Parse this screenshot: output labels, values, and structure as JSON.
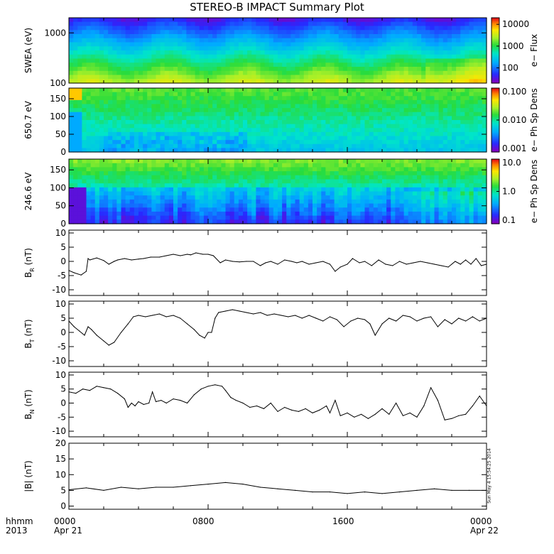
{
  "title": "STEREO-B IMPACT Summary Plot",
  "time_axis": {
    "corner_top": "hhmm",
    "corner_bottom": "2013",
    "ticks": [
      {
        "hhmm": "0000",
        "date": "Apr 21",
        "hour": 0
      },
      {
        "hhmm": "0800",
        "date": "",
        "hour": 8
      },
      {
        "hhmm": "1600",
        "date": "",
        "hour": 16
      },
      {
        "hhmm": "0000",
        "date": "Apr 22",
        "hour": 24
      }
    ]
  },
  "timestamp": "Sun May  4 15:54:25 2014",
  "chart_data": [
    {
      "type": "heatmap",
      "ylabel": "SWEA (eV)",
      "yscale": "log",
      "ylim": [
        100,
        2000
      ],
      "yticks": [
        "1000",
        "100"
      ],
      "colorbar": {
        "label": "e− Flux",
        "scale": "log",
        "ticks": [
          "10000",
          "1000",
          "100"
        ],
        "range": [
          20,
          20000
        ]
      }
    },
    {
      "type": "heatmap",
      "ylabel": "650.7 eV",
      "ylim": [
        0,
        180
      ],
      "yticks": [
        "150",
        "100",
        "50",
        "0"
      ],
      "colorbar": {
        "label": "e− Ph Sp Dens",
        "scale": "log",
        "ticks": [
          "0.100",
          "0.010",
          "0.001"
        ],
        "range": [
          0.001,
          0.1
        ]
      }
    },
    {
      "type": "heatmap",
      "ylabel": "246.6 eV",
      "ylim": [
        0,
        180
      ],
      "yticks": [
        "150",
        "100",
        "50",
        "0"
      ],
      "colorbar": {
        "label": "e− Ph Sp Dens",
        "scale": "log",
        "ticks": [
          "10.0",
          "1.0",
          "0.1"
        ],
        "range": [
          0.1,
          10
        ]
      }
    },
    {
      "type": "line",
      "ylabel": "B_R (nT)",
      "ylim": [
        -12,
        11
      ],
      "yticks": [
        "10",
        "5",
        "0",
        "-5",
        "-10"
      ],
      "x": [
        0,
        0.3,
        0.7,
        1.0,
        1.1,
        1.2,
        1.6,
        2.0,
        2.3,
        2.6,
        2.8,
        3.2,
        3.6,
        4.0,
        4.3,
        4.7,
        5.2,
        5.6,
        6.0,
        6.4,
        6.8,
        7.0,
        7.3,
        7.7,
        8.0,
        8.3,
        8.7,
        9.0,
        9.4,
        9.8,
        10.2,
        10.6,
        11.0,
        11.3,
        11.6,
        12.0,
        12.4,
        12.8,
        13.1,
        13.4,
        13.8,
        14.2,
        14.6,
        15.0,
        15.3,
        15.6,
        16.0,
        16.3,
        16.7,
        17.0,
        17.4,
        17.8,
        18.2,
        18.6,
        19.0,
        19.4,
        19.8,
        20.2,
        20.6,
        21.0,
        21.4,
        21.8,
        22.2,
        22.5,
        22.8,
        23.1,
        23.4,
        23.7,
        24.0
      ],
      "y": [
        -3.2,
        -4.0,
        -4.8,
        -3.5,
        1.0,
        0.5,
        1.2,
        0.3,
        -1.0,
        0.0,
        0.5,
        1.0,
        0.5,
        0.8,
        1.0,
        1.5,
        1.5,
        2.0,
        2.5,
        2.0,
        2.5,
        2.3,
        3.0,
        2.5,
        2.5,
        2.0,
        -0.5,
        0.5,
        0.0,
        -0.2,
        0.0,
        0.0,
        -1.5,
        -0.5,
        0.0,
        -1.0,
        0.5,
        0.0,
        -0.5,
        0.0,
        -1.0,
        -0.5,
        0.0,
        -1.0,
        -3.5,
        -2.0,
        -1.0,
        1.0,
        -0.5,
        0.0,
        -1.5,
        0.5,
        -1.0,
        -1.5,
        0.0,
        -1.0,
        -0.5,
        0.0,
        -0.5,
        -1.0,
        -1.5,
        -2.0,
        0.0,
        -1.0,
        0.5,
        -1.0,
        1.0,
        -1.5,
        -1.0
      ]
    },
    {
      "type": "line",
      "ylabel": "B_T (nT)",
      "ylim": [
        -12,
        11
      ],
      "yticks": [
        "10",
        "5",
        "0",
        "-5",
        "-10"
      ],
      "x": [
        0,
        0.3,
        0.6,
        0.9,
        1.1,
        1.3,
        1.6,
        2.0,
        2.3,
        2.6,
        3.0,
        3.4,
        3.7,
        4.0,
        4.4,
        4.8,
        5.2,
        5.6,
        6.0,
        6.4,
        6.8,
        7.2,
        7.5,
        7.8,
        8.0,
        8.2,
        8.4,
        8.6,
        9.0,
        9.4,
        9.8,
        10.2,
        10.6,
        11.0,
        11.4,
        11.8,
        12.2,
        12.6,
        13.0,
        13.4,
        13.8,
        14.2,
        14.6,
        15.0,
        15.4,
        15.8,
        16.2,
        16.6,
        17.0,
        17.3,
        17.6,
        18.0,
        18.4,
        18.8,
        19.2,
        19.6,
        20.0,
        20.4,
        20.8,
        21.2,
        21.6,
        22.0,
        22.4,
        22.8,
        23.2,
        23.6,
        24.0
      ],
      "y": [
        4.0,
        2.0,
        0.5,
        -1.0,
        2.0,
        1.0,
        -1.0,
        -3.0,
        -4.5,
        -3.5,
        0.0,
        3.0,
        5.5,
        6.0,
        5.5,
        6.0,
        6.5,
        5.5,
        6.0,
        5.0,
        3.0,
        1.0,
        -1.0,
        -2.0,
        0.0,
        0.0,
        5.0,
        7.0,
        7.5,
        8.0,
        7.5,
        7.0,
        6.5,
        7.0,
        6.0,
        6.5,
        6.0,
        5.5,
        6.0,
        5.0,
        6.0,
        5.0,
        4.0,
        5.5,
        4.5,
        2.0,
        4.0,
        5.0,
        4.5,
        3.0,
        -1.0,
        3.0,
        5.0,
        4.0,
        6.0,
        5.5,
        4.0,
        5.0,
        5.5,
        2.0,
        4.5,
        3.0,
        5.0,
        4.0,
        5.5,
        4.0,
        5.0
      ]
    },
    {
      "type": "line",
      "ylabel": "B_N (nT)",
      "ylim": [
        -12,
        11
      ],
      "yticks": [
        "10",
        "5",
        "0",
        "-5",
        "-10"
      ],
      "x": [
        0,
        0.4,
        0.8,
        1.2,
        1.6,
        2.0,
        2.4,
        2.8,
        3.2,
        3.4,
        3.6,
        3.8,
        4.0,
        4.3,
        4.6,
        4.8,
        5.0,
        5.3,
        5.6,
        6.0,
        6.4,
        6.8,
        7.2,
        7.6,
        8.0,
        8.4,
        8.8,
        9.0,
        9.3,
        9.6,
        10.0,
        10.4,
        10.8,
        11.2,
        11.6,
        12.0,
        12.4,
        12.8,
        13.2,
        13.6,
        14.0,
        14.4,
        14.8,
        15.0,
        15.3,
        15.6,
        16.0,
        16.4,
        16.8,
        17.2,
        17.6,
        18.0,
        18.4,
        18.8,
        19.2,
        19.6,
        20.0,
        20.4,
        20.8,
        21.2,
        21.6,
        22.0,
        22.4,
        22.8,
        23.2,
        23.6,
        24.0
      ],
      "y": [
        4.0,
        3.5,
        5.0,
        4.5,
        6.0,
        5.5,
        5.0,
        3.5,
        1.5,
        -1.5,
        0.0,
        -1.0,
        0.5,
        -0.5,
        0.0,
        4.0,
        0.5,
        1.0,
        0.0,
        1.5,
        1.0,
        0.0,
        3.0,
        5.0,
        6.0,
        6.5,
        6.0,
        4.5,
        2.0,
        1.0,
        0.0,
        -1.5,
        -1.0,
        -2.0,
        0.0,
        -3.0,
        -1.5,
        -2.5,
        -3.0,
        -2.0,
        -3.5,
        -2.5,
        -1.0,
        -3.5,
        1.0,
        -4.5,
        -3.5,
        -5.0,
        -4.0,
        -5.5,
        -4.0,
        -2.0,
        -4.0,
        0.0,
        -4.5,
        -3.5,
        -5.0,
        -1.0,
        5.5,
        1.0,
        -6.0,
        -5.5,
        -4.5,
        -4.0,
        -1.0,
        2.5,
        -1.0
      ]
    },
    {
      "type": "line",
      "ylabel": "|B| (nT)",
      "ylim": [
        -1,
        20
      ],
      "yticks": [
        "20",
        "15",
        "10",
        "5",
        "0"
      ],
      "x": [
        0,
        1,
        2,
        3,
        4,
        5,
        6,
        7,
        8,
        9,
        10,
        11,
        12,
        13,
        14,
        15,
        16,
        17,
        18,
        19,
        20,
        21,
        22,
        23,
        24
      ],
      "y": [
        5.2,
        5.8,
        5.0,
        6.0,
        5.5,
        6.0,
        6.0,
        6.5,
        7.0,
        7.5,
        7.0,
        6.0,
        5.5,
        5.0,
        4.5,
        4.5,
        4.0,
        4.5,
        4.0,
        4.5,
        5.0,
        5.5,
        5.0,
        5.0,
        5.0
      ]
    }
  ]
}
